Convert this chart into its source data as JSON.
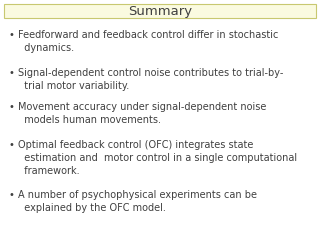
{
  "title": "Summary",
  "title_fontsize": 9.5,
  "title_box_color": "#FAFAE0",
  "title_box_edge_color": "#C8C870",
  "background_color": "#FFFFFF",
  "text_color": "#404040",
  "bullet_points": [
    "Feedforward and feedback control differ in stochastic\n  dynamics.",
    "Signal-dependent control noise contributes to trial-by-\n  trial motor variability.",
    "Movement accuracy under signal-dependent noise\n  models human movements.",
    "Optimal feedback control (OFC) integrates state\n  estimation and  motor control in a single computational\n  framework.",
    "A number of psychophysical experiments can be\n  explained by the OFC model."
  ],
  "bullet_fontsize": 7.0,
  "bullet_color": "#404040",
  "bullet_char": "•"
}
